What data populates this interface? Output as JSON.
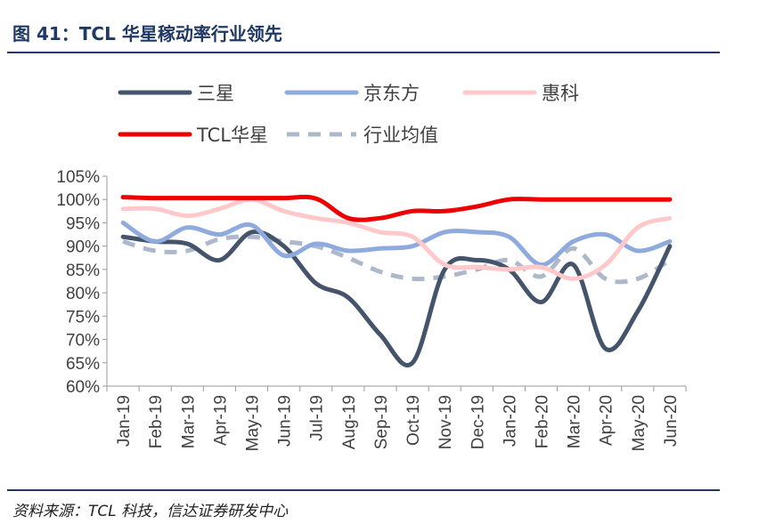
{
  "figure": {
    "title": "图 41：TCL 华星稼动率行业领先",
    "source": "资料来源：TCL 科技，信达证券研发中心"
  },
  "chart_data": {
    "type": "line",
    "categories": [
      "Jan-19",
      "Feb-19",
      "Mar-19",
      "Apr-19",
      "May-19",
      "Jun-19",
      "Jul-19",
      "Aug-19",
      "Sep-19",
      "Oct-19",
      "Nov-19",
      "Dec-19",
      "Jan-20",
      "Feb-20",
      "Mar-20",
      "Apr-20",
      "May-20",
      "Jun-20"
    ],
    "ylim": [
      60,
      105
    ],
    "yticks": [
      "105%",
      "100%",
      "95%",
      "90%",
      "85%",
      "80%",
      "75%",
      "70%",
      "65%",
      "60%"
    ],
    "ytick_values": [
      105,
      100,
      95,
      90,
      85,
      80,
      75,
      70,
      65,
      60
    ],
    "legend_position": "top",
    "series": [
      {
        "name": "三星",
        "color": "#44546a",
        "dash": "solid",
        "values": [
          92,
          91,
          90.5,
          87,
          93,
          90,
          82,
          79,
          71,
          65,
          85,
          87,
          85,
          78,
          86,
          68,
          76,
          90
        ]
      },
      {
        "name": "京东方",
        "color": "#8faadc",
        "dash": "solid",
        "values": [
          95,
          91,
          94,
          92.5,
          94.5,
          88,
          90.5,
          89,
          89.5,
          90,
          93,
          93,
          92,
          86,
          91,
          92.5,
          89,
          91
        ]
      },
      {
        "name": "惠科",
        "color": "#ffc9cc",
        "dash": "solid",
        "values": [
          98,
          98,
          96.5,
          98,
          100,
          97.5,
          96,
          95,
          93,
          92,
          86,
          85.5,
          85,
          85.5,
          83,
          86,
          94,
          96
        ]
      },
      {
        "name": "TCL华星",
        "color": "#ee0000",
        "dash": "solid",
        "values": [
          100.5,
          100.3,
          100.3,
          100.3,
          100.3,
          100.3,
          100.2,
          96,
          96,
          97.5,
          97.5,
          98.5,
          100,
          100,
          100,
          100,
          100,
          100
        ]
      },
      {
        "name": "行业均值",
        "color": "#adb9ca",
        "dash": "dashed",
        "values": [
          91,
          89,
          89,
          91.5,
          92,
          91,
          90,
          87.5,
          84.5,
          83,
          83.5,
          85,
          87,
          83.5,
          89.5,
          83,
          83,
          87
        ]
      }
    ]
  }
}
